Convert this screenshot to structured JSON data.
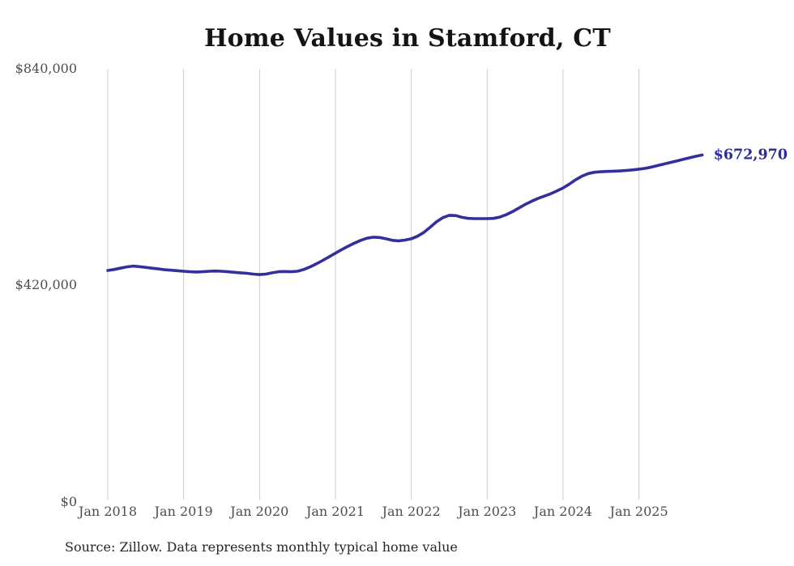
{
  "chart": {
    "title": "Home Values in Stamford, CT",
    "source_note": "Source: Zillow. Data represents monthly typical home value",
    "end_label": "$672,970",
    "colors": {
      "line": "#332f9c",
      "end_label": "#2c2c9c",
      "gridline": "#cccccc",
      "axis_text": "#4d4d4d",
      "title_text": "#141414",
      "background": "#ffffff"
    }
  },
  "chart_data": {
    "type": "line",
    "title": "Home Values in Stamford, CT",
    "xlabel": "",
    "ylabel": "",
    "ylim": [
      0,
      840000
    ],
    "y_tick_labels": [
      "$0",
      "$420,000",
      "$840,000"
    ],
    "y_tick_values": [
      0,
      420000,
      840000
    ],
    "x_tick_labels": [
      "Jan 2018",
      "Jan 2019",
      "Jan 2020",
      "Jan 2021",
      "Jan 2022",
      "Jan 2023",
      "Jan 2024",
      "Jan 2025"
    ],
    "grid": "vertical-only",
    "legend": "none",
    "unit": "USD",
    "frequency": "monthly",
    "x_start": "Jan 2018",
    "x_end": "Nov 2025",
    "last_value": 672970,
    "last_value_label": "$672,970",
    "series": [
      {
        "name": "Typical home value",
        "values": [
          449000,
          451000,
          453500,
          456000,
          457500,
          456500,
          455000,
          453500,
          452000,
          450500,
          449500,
          448500,
          447500,
          446500,
          446000,
          446500,
          447500,
          448000,
          447500,
          446500,
          445500,
          444500,
          443500,
          442000,
          441000,
          442000,
          444500,
          446500,
          447000,
          446500,
          447500,
          451000,
          456000,
          462000,
          468500,
          475500,
          482500,
          489500,
          496000,
          502000,
          507500,
          511500,
          513500,
          513000,
          510500,
          507500,
          506500,
          508000,
          510500,
          515500,
          523000,
          533000,
          543500,
          551500,
          556000,
          555500,
          552000,
          550000,
          549500,
          549500,
          549500,
          550000,
          552500,
          557000,
          563000,
          570000,
          577000,
          583000,
          588500,
          593000,
          597500,
          603000,
          609000,
          616500,
          625000,
          632000,
          637000,
          639500,
          640500,
          641000,
          641500,
          642000,
          643000,
          644000,
          645500,
          647000,
          649500,
          652500,
          655500,
          658500,
          661500,
          664500,
          667500,
          670500,
          672970
        ]
      }
    ]
  }
}
